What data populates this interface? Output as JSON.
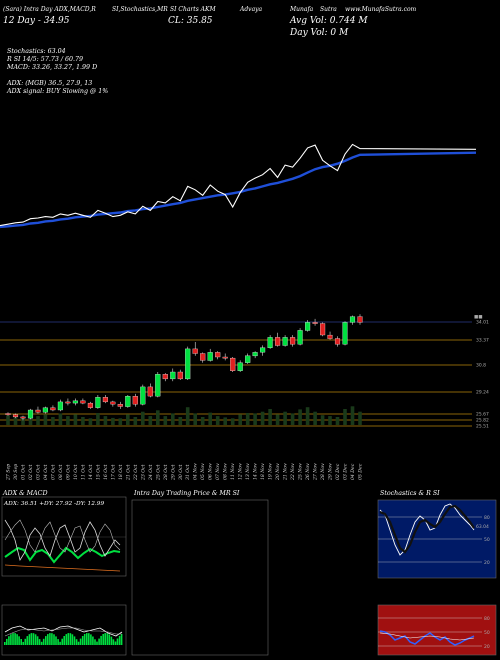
{
  "header": {
    "items": [
      "(Sara) Intra Day ADX,MACD,R",
      "SI,Stochastics,MR",
      "SI Charts AKM",
      "Advaya",
      "Munafa",
      "Sutra",
      "www.MunafaSutra.com"
    ]
  },
  "stats": {
    "price_line": "12 Day - 34.95",
    "close_line": "CL: 35.85",
    "avg_vol": "Avg Vol: 0.744  M",
    "day_vol": "Day Vol: 0   M"
  },
  "indicators": {
    "stochastics": "Stochastics: 63.04",
    "rsi": "R                    SI 14/5: 57.73 / 60.79",
    "macd": "MACD: 33.26,  33.27,  1.99 D",
    "adx": "ADX:                              (MGB) 36.5,   27.9,   13",
    "adx_signal": "ADX  signal:                              BUY Slowing @ 1%"
  },
  "panels": {
    "adx_macd": "ADX  & MACD",
    "adx_values": "ADX: 36.51  +DY: 27.92  -DY: 12.99",
    "intra_day": "Intra  Day Trading Price  & MR                 SI",
    "stoch_rsi": "Stochastics & R                  SI"
  },
  "chart_data": {
    "type": "candlestick",
    "price_levels": [
      "34.01",
      "33.37",
      "30.8",
      "29.24",
      "25.67",
      "25.82",
      "25.51"
    ],
    "x": [
      "27 Sep",
      "30 Sep",
      "01 Oct",
      "02 Oct",
      "03 Oct",
      "04 Oct",
      "07 Oct",
      "08 Oct",
      "09 Oct",
      "10 Oct",
      "11 Oct",
      "14 Oct",
      "15 Oct",
      "16 Oct",
      "17 Oct",
      "18 Oct",
      "21 Oct",
      "22 Oct",
      "23 Oct",
      "24 Oct",
      "25 Oct",
      "28 Oct",
      "29 Oct",
      "30 Oct",
      "31 Oct",
      "04 Nov",
      "05 Nov",
      "06 Nov",
      "07 Nov",
      "08 Nov",
      "11 Nov",
      "12 Nov",
      "13 Nov",
      "14 Nov",
      "18 Nov",
      "19 Nov",
      "20 Nov",
      "21 Nov",
      "22 Nov",
      "25 Nov",
      "26 Nov",
      "27 Nov",
      "28 Nov",
      "29 Nov",
      "02 Dec",
      "03 Dec",
      "04 Dec",
      "05 Dec"
    ],
    "candles": [
      [
        26.0,
        26.1,
        25.8,
        25.9
      ],
      [
        25.9,
        26.0,
        25.6,
        25.7
      ],
      [
        25.7,
        25.8,
        25.4,
        25.6
      ],
      [
        25.6,
        26.4,
        25.5,
        26.3
      ],
      [
        26.3,
        26.6,
        26.0,
        26.1
      ],
      [
        26.1,
        26.6,
        26.0,
        26.5
      ],
      [
        26.5,
        26.7,
        26.2,
        26.3
      ],
      [
        26.3,
        27.2,
        26.2,
        27.0
      ],
      [
        27.0,
        27.3,
        26.7,
        26.9
      ],
      [
        26.9,
        27.3,
        26.7,
        27.1
      ],
      [
        27.1,
        27.3,
        26.8,
        26.9
      ],
      [
        26.9,
        27.0,
        26.4,
        26.5
      ],
      [
        26.5,
        27.6,
        26.4,
        27.4
      ],
      [
        27.4,
        27.6,
        26.9,
        27.0
      ],
      [
        27.0,
        27.1,
        26.6,
        26.8
      ],
      [
        26.8,
        27.0,
        26.4,
        26.6
      ],
      [
        26.6,
        27.6,
        26.5,
        27.5
      ],
      [
        27.5,
        27.7,
        26.6,
        26.8
      ],
      [
        26.8,
        28.5,
        26.7,
        28.3
      ],
      [
        28.3,
        28.6,
        27.4,
        27.5
      ],
      [
        27.5,
        29.6,
        27.4,
        29.4
      ],
      [
        29.4,
        29.5,
        28.8,
        29.0
      ],
      [
        29.0,
        29.9,
        28.8,
        29.6
      ],
      [
        29.6,
        29.8,
        28.9,
        29.0
      ],
      [
        29.0,
        31.8,
        28.9,
        31.6
      ],
      [
        31.6,
        32.2,
        31.0,
        31.2
      ],
      [
        31.2,
        31.3,
        30.4,
        30.6
      ],
      [
        30.6,
        31.6,
        30.5,
        31.3
      ],
      [
        31.3,
        31.4,
        30.7,
        30.9
      ],
      [
        30.9,
        31.2,
        30.6,
        30.8
      ],
      [
        30.8,
        30.9,
        29.6,
        29.7
      ],
      [
        29.7,
        30.6,
        29.6,
        30.4
      ],
      [
        30.4,
        31.2,
        30.3,
        31.0
      ],
      [
        31.0,
        31.4,
        30.8,
        31.3
      ],
      [
        31.3,
        31.9,
        31.0,
        31.7
      ],
      [
        31.7,
        32.8,
        31.6,
        32.6
      ],
      [
        32.6,
        33.0,
        31.8,
        31.9
      ],
      [
        31.9,
        32.8,
        31.8,
        32.6
      ],
      [
        32.6,
        32.8,
        31.8,
        32.0
      ],
      [
        32.0,
        33.4,
        31.9,
        33.2
      ],
      [
        33.2,
        34.1,
        33.1,
        33.9
      ],
      [
        33.9,
        34.2,
        33.6,
        33.8
      ],
      [
        33.8,
        33.9,
        32.7,
        32.8
      ],
      [
        32.8,
        33.1,
        32.4,
        32.5
      ],
      [
        32.5,
        32.7,
        31.8,
        32.0
      ],
      [
        32.0,
        34.0,
        31.9,
        33.9
      ],
      [
        33.9,
        34.5,
        33.7,
        34.4
      ],
      [
        34.4,
        34.6,
        33.7,
        33.9
      ]
    ],
    "ma_fast": [
      46.3,
      46.5,
      46.6,
      47.1,
      47.2,
      47.4,
      47.3,
      47.8,
      47.6,
      47.9,
      47.6,
      47.3,
      48.3,
      47.9,
      47.4,
      47.6,
      48.1,
      47.8,
      48.9,
      48.3,
      49.6,
      49.4,
      50.3,
      49.7,
      51.8,
      51.3,
      50.5,
      52.0,
      51.1,
      50.6,
      48.8,
      50.9,
      52.4,
      53.0,
      53.5,
      54.4,
      53.1,
      54.9,
      54.6,
      55.9,
      57.4,
      57.8,
      55.6,
      54.8,
      54.1,
      56.5,
      57.9,
      57.3
    ],
    "ma_slow": [
      46.0,
      46.1,
      46.2,
      46.4,
      46.5,
      46.7,
      46.8,
      47.0,
      47.1,
      47.3,
      47.4,
      47.5,
      47.7,
      47.8,
      47.9,
      48.0,
      48.2,
      48.3,
      48.5,
      48.6,
      48.8,
      49.0,
      49.2,
      49.4,
      49.7,
      49.9,
      50.1,
      50.3,
      50.5,
      50.6,
      50.8,
      51.0,
      51.3,
      51.5,
      51.8,
      52.1,
      52.3,
      52.6,
      52.9,
      53.3,
      53.8,
      54.3,
      54.6,
      54.8,
      55.1,
      55.5,
      56.0,
      56.4
    ],
    "volume": [
      22,
      18,
      15,
      30,
      20,
      24,
      18,
      26,
      20,
      24,
      18,
      15,
      27,
      20,
      16,
      15,
      24,
      18,
      30,
      20,
      33,
      20,
      26,
      18,
      40,
      26,
      18,
      28,
      20,
      17,
      15,
      24,
      27,
      26,
      30,
      36,
      24,
      30,
      26,
      35,
      40,
      30,
      22,
      20,
      18,
      36,
      42,
      30
    ]
  },
  "colors": {
    "up": "#00e040",
    "down": "#e02020",
    "slow_ma": "#1f4fd8",
    "level_line": "#b8860b",
    "volume": "#00e040",
    "rsi_bg": "#a01010",
    "stoch_bg": "#001a66"
  }
}
